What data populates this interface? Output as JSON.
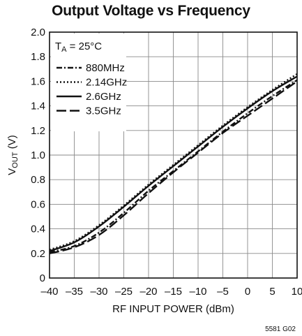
{
  "chart_data": {
    "type": "line",
    "title": "Output Voltage vs Frequency",
    "xlabel": "RF INPUT POWER (dBm)",
    "ylabel": {
      "main": "V",
      "sub": "OUT",
      "unit": " (V)"
    },
    "xlim": [
      -40,
      10
    ],
    "ylim": [
      0,
      2.0
    ],
    "xticks": [
      -40,
      -35,
      -30,
      -25,
      -20,
      -15,
      -10,
      -5,
      0,
      5,
      10
    ],
    "xtick_labels": [
      "–40",
      "–35",
      "–30",
      "–25",
      "–20",
      "–15",
      "–10",
      "–5",
      "0",
      "5",
      "10"
    ],
    "yticks": [
      0,
      0.2,
      0.4,
      0.6,
      0.8,
      1.0,
      1.2,
      1.4,
      1.6,
      1.8,
      2.0
    ],
    "ytick_labels": [
      "0",
      "0.2",
      "0.4",
      "0.6",
      "0.8",
      "1.0",
      "1.2",
      "1.4",
      "1.6",
      "1.8",
      "2.0"
    ],
    "grid": true,
    "legend_position": "top-left",
    "annotation": {
      "main": "T",
      "sub": "A",
      "rest": " = 25°C"
    },
    "footer_code": "5581 G02",
    "x": [
      -40,
      -35,
      -30,
      -25,
      -20,
      -15,
      -10,
      -5,
      0,
      5,
      10
    ],
    "series": [
      {
        "name": "880MHz",
        "dash": "dashdot",
        "values": [
          0.21,
          0.26,
          0.37,
          0.53,
          0.71,
          0.87,
          1.03,
          1.19,
          1.34,
          1.48,
          1.61
        ]
      },
      {
        "name": "2.14GHz",
        "dash": "dotted",
        "values": [
          0.23,
          0.3,
          0.43,
          0.59,
          0.76,
          0.92,
          1.08,
          1.24,
          1.39,
          1.53,
          1.66
        ]
      },
      {
        "name": "2.6GHz",
        "dash": "solid",
        "values": [
          0.22,
          0.29,
          0.42,
          0.58,
          0.75,
          0.91,
          1.07,
          1.23,
          1.38,
          1.52,
          1.64
        ]
      },
      {
        "name": "3.5GHz",
        "dash": "longdash",
        "values": [
          0.2,
          0.25,
          0.35,
          0.51,
          0.69,
          0.86,
          1.02,
          1.18,
          1.32,
          1.46,
          1.6
        ]
      }
    ]
  }
}
